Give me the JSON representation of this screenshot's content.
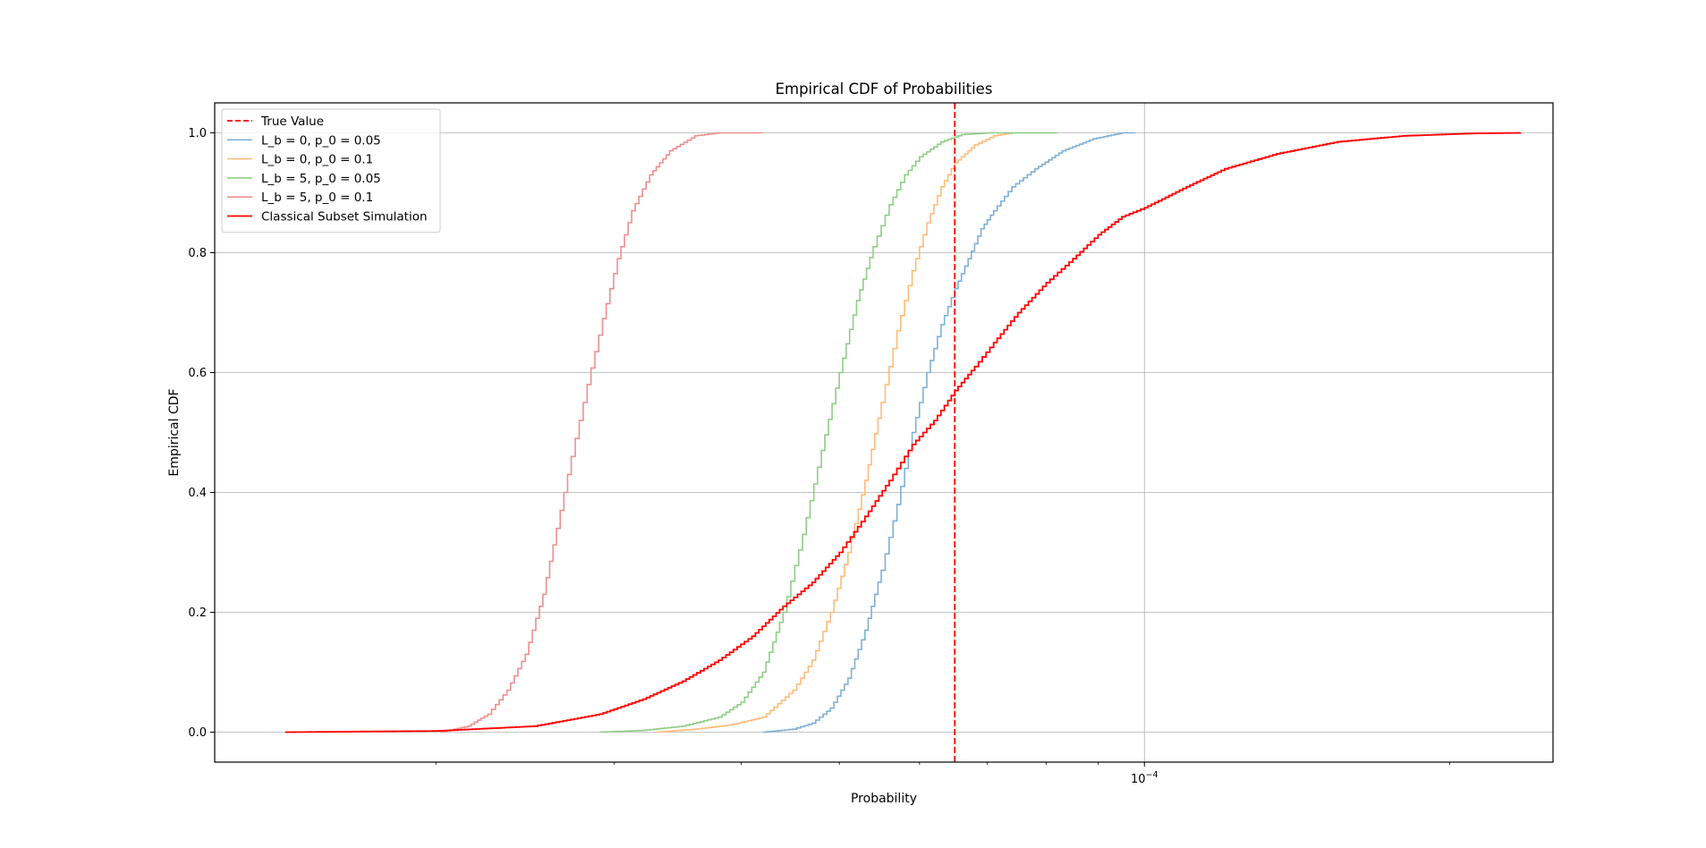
{
  "chart_data": {
    "type": "line",
    "title": "Empirical CDF of Probabilities",
    "xlabel": "Probability",
    "ylabel": "Empirical CDF",
    "xscale": "log",
    "xlim": [
      1.21e-05,
      0.000253
    ],
    "ylim": [
      -0.05,
      1.05
    ],
    "x_ticks": [
      {
        "value": 0.0001,
        "base": "10",
        "exponent": "−4"
      }
    ],
    "y_ticks": [
      0.0,
      0.2,
      0.4,
      0.6,
      0.8,
      1.0
    ],
    "y_tick_labels": [
      "0.0",
      "0.2",
      "0.4",
      "0.6",
      "0.8",
      "1.0"
    ],
    "grid": true,
    "legend_position": "upper left",
    "true_value": {
      "name": "True Value",
      "x": 6.5e-05,
      "color": "#ff0000"
    },
    "series": [
      {
        "name": "L_b = 0, p_0 = 0.05",
        "color": "#7fb0d5",
        "points": [
          [
            4.2e-05,
            0.0
          ],
          [
            4.5e-05,
            0.005
          ],
          [
            4.7e-05,
            0.015
          ],
          [
            4.9e-05,
            0.04
          ],
          [
            5.1e-05,
            0.09
          ],
          [
            5.3e-05,
            0.17
          ],
          [
            5.5e-05,
            0.27
          ],
          [
            5.7e-05,
            0.38
          ],
          [
            5.9e-05,
            0.5
          ],
          [
            6.1e-05,
            0.6
          ],
          [
            6.3e-05,
            0.68
          ],
          [
            6.5e-05,
            0.74
          ],
          [
            6.7e-05,
            0.79
          ],
          [
            6.9e-05,
            0.84
          ],
          [
            7.1e-05,
            0.87
          ],
          [
            7.4e-05,
            0.91
          ],
          [
            7.8e-05,
            0.94
          ],
          [
            8.3e-05,
            0.97
          ],
          [
            8.9e-05,
            0.99
          ],
          [
            9.5e-05,
            1.0
          ],
          [
            9.8e-05,
            1.0
          ]
        ]
      },
      {
        "name": "L_b = 0, p_0 = 0.1",
        "color": "#ffbb78",
        "points": [
          [
            3.3e-05,
            0.0
          ],
          [
            3.6e-05,
            0.005
          ],
          [
            3.9e-05,
            0.012
          ],
          [
            4.2e-05,
            0.025
          ],
          [
            4.5e-05,
            0.07
          ],
          [
            4.7e-05,
            0.12
          ],
          [
            4.9e-05,
            0.2
          ],
          [
            5.1e-05,
            0.3
          ],
          [
            5.3e-05,
            0.42
          ],
          [
            5.5e-05,
            0.55
          ],
          [
            5.7e-05,
            0.67
          ],
          [
            5.9e-05,
            0.77
          ],
          [
            6.1e-05,
            0.85
          ],
          [
            6.3e-05,
            0.91
          ],
          [
            6.5e-05,
            0.95
          ],
          [
            6.8e-05,
            0.98
          ],
          [
            7.1e-05,
            0.995
          ],
          [
            7.4e-05,
            1.0
          ]
        ]
      },
      {
        "name": "L_b = 5, p_0 = 0.05",
        "color": "#8fce86",
        "points": [
          [
            2.9e-05,
            0.0
          ],
          [
            3.2e-05,
            0.003
          ],
          [
            3.5e-05,
            0.01
          ],
          [
            3.8e-05,
            0.025
          ],
          [
            4e-05,
            0.05
          ],
          [
            4.2e-05,
            0.1
          ],
          [
            4.4e-05,
            0.2
          ],
          [
            4.6e-05,
            0.33
          ],
          [
            4.8e-05,
            0.47
          ],
          [
            5e-05,
            0.6
          ],
          [
            5.2e-05,
            0.72
          ],
          [
            5.4e-05,
            0.81
          ],
          [
            5.6e-05,
            0.88
          ],
          [
            5.8e-05,
            0.93
          ],
          [
            6e-05,
            0.96
          ],
          [
            6.3e-05,
            0.985
          ],
          [
            6.6e-05,
            0.997
          ],
          [
            7e-05,
            1.0
          ],
          [
            8.2e-05,
            1.0
          ]
        ]
      },
      {
        "name": "L_b = 5, p_0 = 0.1",
        "color": "#ee8f8f",
        "points": [
          [
            2.02e-05,
            0.0
          ],
          [
            2.15e-05,
            0.01
          ],
          [
            2.25e-05,
            0.03
          ],
          [
            2.35e-05,
            0.07
          ],
          [
            2.45e-05,
            0.13
          ],
          [
            2.55e-05,
            0.23
          ],
          [
            2.63e-05,
            0.34
          ],
          [
            2.72e-05,
            0.46
          ],
          [
            2.82e-05,
            0.58
          ],
          [
            2.92e-05,
            0.69
          ],
          [
            3.02e-05,
            0.79
          ],
          [
            3.12e-05,
            0.87
          ],
          [
            3.25e-05,
            0.93
          ],
          [
            3.4e-05,
            0.97
          ],
          [
            3.6e-05,
            0.995
          ],
          [
            3.8e-05,
            1.0
          ],
          [
            4.2e-05,
            1.0
          ]
        ]
      },
      {
        "name": "Classical Subset Simulation",
        "color": "#ff0000",
        "points": [
          [
            1.42e-05,
            0.0
          ],
          [
            2e-05,
            0.002
          ],
          [
            2.5e-05,
            0.01
          ],
          [
            2.9e-05,
            0.03
          ],
          [
            3.2e-05,
            0.055
          ],
          [
            3.5e-05,
            0.085
          ],
          [
            3.8e-05,
            0.12
          ],
          [
            4.1e-05,
            0.16
          ],
          [
            4.4e-05,
            0.21
          ],
          [
            4.7e-05,
            0.25
          ],
          [
            5e-05,
            0.3
          ],
          [
            5.3e-05,
            0.36
          ],
          [
            5.6e-05,
            0.42
          ],
          [
            5.9e-05,
            0.48
          ],
          [
            6.2e-05,
            0.52
          ],
          [
            6.5e-05,
            0.57
          ],
          [
            6.8e-05,
            0.61
          ],
          [
            7.1e-05,
            0.65
          ],
          [
            7.5e-05,
            0.7
          ],
          [
            8e-05,
            0.75
          ],
          [
            8.5e-05,
            0.79
          ],
          [
            9e-05,
            0.83
          ],
          [
            9.5e-05,
            0.86
          ],
          [
            0.0001,
            0.875
          ],
          [
            0.00011,
            0.91
          ],
          [
            0.00012,
            0.94
          ],
          [
            0.000135,
            0.965
          ],
          [
            0.000155,
            0.985
          ],
          [
            0.00018,
            0.995
          ],
          [
            0.00021,
            0.999
          ],
          [
            0.000235,
            1.0
          ]
        ]
      }
    ]
  }
}
